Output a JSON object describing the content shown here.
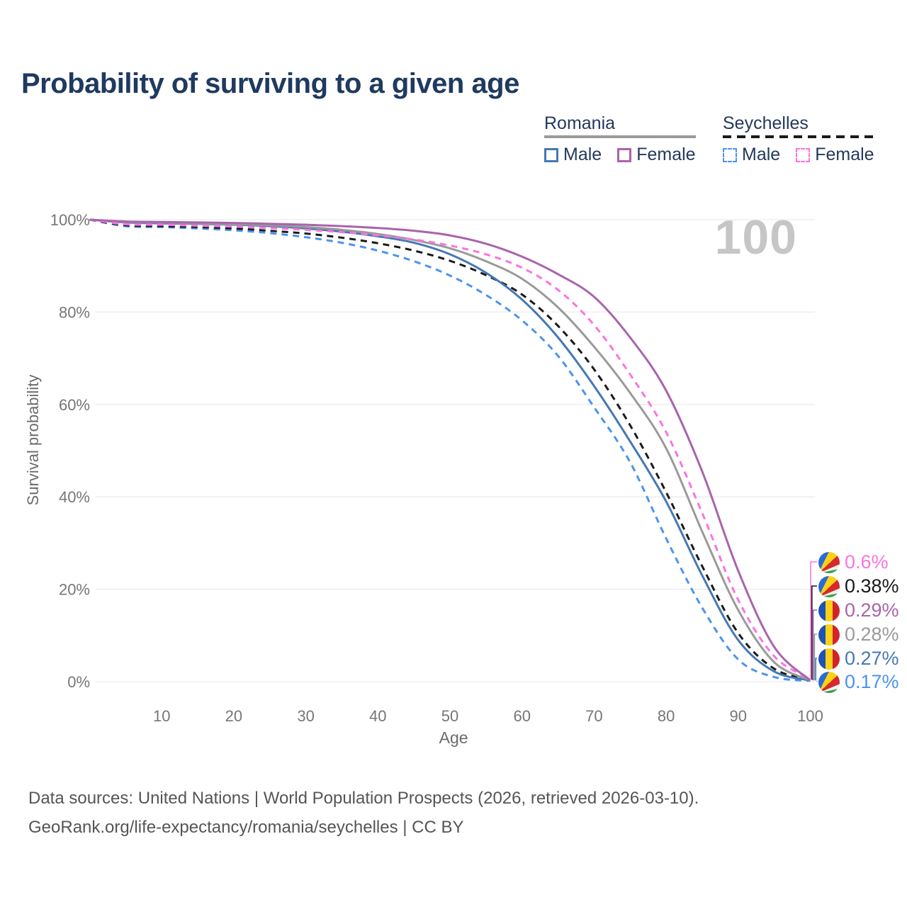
{
  "title": "Probability of surviving to a given age",
  "watermark": "100",
  "legend": {
    "groups": [
      {
        "label": "Romania",
        "style": "solid",
        "items": [
          {
            "label": "Male",
            "series": "romania_male"
          },
          {
            "label": "Female",
            "series": "romania_female"
          }
        ]
      },
      {
        "label": "Seychelles",
        "style": "dashed",
        "items": [
          {
            "label": "Male",
            "series": "seychelles_male"
          },
          {
            "label": "Female",
            "series": "seychelles_female"
          }
        ]
      }
    ]
  },
  "chart_data": {
    "type": "line",
    "title": "Probability of surviving to a given age",
    "xlabel": "Age",
    "ylabel": "Survival probability",
    "xlim": [
      0,
      100
    ],
    "ylim": [
      0,
      100
    ],
    "grid": true,
    "x_tick_labels": [
      "10",
      "20",
      "30",
      "40",
      "50",
      "60",
      "70",
      "80",
      "90",
      "100"
    ],
    "x_tick_values": [
      10,
      20,
      30,
      40,
      50,
      60,
      70,
      80,
      90,
      100
    ],
    "y_tick_labels": [
      "0%",
      "20%",
      "40%",
      "60%",
      "80%",
      "100%"
    ],
    "y_tick_values": [
      0,
      20,
      40,
      60,
      80,
      100
    ],
    "x": [
      0,
      5,
      10,
      15,
      20,
      25,
      30,
      35,
      40,
      45,
      50,
      55,
      60,
      65,
      70,
      75,
      80,
      85,
      90,
      95,
      100
    ],
    "series": [
      {
        "name": "seychelles_male",
        "country": "Seychelles",
        "sex": "Male",
        "color": "#4b93f0",
        "dash": "dashed",
        "values": [
          100,
          98.6,
          98.4,
          98.1,
          97.7,
          97.1,
          96.2,
          95.0,
          93.3,
          91.0,
          87.9,
          83.7,
          78.2,
          70.5,
          59.4,
          47.5,
          31.0,
          16.0,
          4.8,
          1.0,
          0.17
        ]
      },
      {
        "name": "seychelles_total",
        "country": "Seychelles",
        "sex": "Both",
        "color": "#1a1a1a",
        "dash": "dashed",
        "values": [
          100,
          98.8,
          98.6,
          98.4,
          98.1,
          97.6,
          97.0,
          96.1,
          94.9,
          93.3,
          91.1,
          88.0,
          83.8,
          77.0,
          67.6,
          55.5,
          41.0,
          25.0,
          10.5,
          2.8,
          0.38
        ]
      },
      {
        "name": "romania_male",
        "country": "Romania",
        "sex": "Male",
        "color": "#4678b4",
        "dash": "solid",
        "values": [
          100,
          99.4,
          99.2,
          99.1,
          98.9,
          98.6,
          98.1,
          97.4,
          96.4,
          95.0,
          92.5,
          88.5,
          82.7,
          74.5,
          64.0,
          52.0,
          39.0,
          23.0,
          9.0,
          2.2,
          0.27
        ]
      },
      {
        "name": "romania_total",
        "country": "Romania",
        "sex": "Both",
        "color": "#9a9a9a",
        "dash": "solid",
        "values": [
          100,
          99.5,
          99.4,
          99.2,
          99.0,
          98.8,
          98.4,
          97.8,
          96.9,
          95.6,
          93.8,
          91.0,
          87.2,
          81.0,
          72.5,
          62.5,
          50.5,
          32.5,
          15.5,
          4.2,
          0.28
        ]
      },
      {
        "name": "seychelles_female",
        "country": "Seychelles",
        "sex": "Female",
        "color": "#fb74dd",
        "dash": "dashed",
        "values": [
          100,
          99.0,
          98.9,
          98.7,
          98.5,
          98.2,
          97.8,
          97.3,
          96.6,
          95.7,
          94.4,
          92.5,
          89.6,
          84.8,
          77.2,
          66.5,
          54.0,
          36.5,
          17.7,
          5.5,
          0.6
        ]
      },
      {
        "name": "romania_female",
        "country": "Romania",
        "sex": "Female",
        "color": "#a964ab",
        "dash": "solid",
        "values": [
          100,
          99.6,
          99.5,
          99.4,
          99.3,
          99.1,
          98.9,
          98.6,
          98.2,
          97.6,
          96.6,
          94.8,
          92.0,
          88.2,
          83.3,
          74.5,
          63.0,
          45.5,
          24.0,
          7.5,
          0.29
        ]
      }
    ],
    "end_labels": [
      {
        "text": "0.6%",
        "value": 0.6,
        "color": "#fb74dd",
        "flag": "seychelles",
        "series": "seychelles_female"
      },
      {
        "text": "0.38%",
        "value": 0.38,
        "color": "#1a1a1a",
        "flag": "seychelles",
        "series": "seychelles_total"
      },
      {
        "text": "0.29%",
        "value": 0.29,
        "color": "#a964ab",
        "flag": "romania",
        "series": "romania_female"
      },
      {
        "text": "0.28%",
        "value": 0.28,
        "color": "#9a9a9a",
        "flag": "romania",
        "series": "romania_total"
      },
      {
        "text": "0.27%",
        "value": 0.27,
        "color": "#4678b4",
        "flag": "romania",
        "series": "romania_male"
      },
      {
        "text": "0.17%",
        "value": 0.17,
        "color": "#4b93f0",
        "flag": "seychelles",
        "series": "seychelles_male"
      }
    ],
    "legend_position": "top-right"
  },
  "footer": {
    "line1": "Data sources: United Nations | World Population Prospects (2026, retrieved 2026-03-10).",
    "line2": "GeoRank.org/life-expectancy/romania/seychelles | CC BY"
  }
}
